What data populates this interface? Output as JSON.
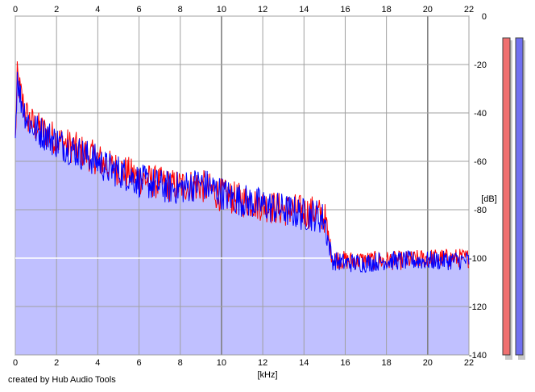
{
  "chart_data": {
    "type": "line",
    "xlabel": "[kHz]",
    "ylabel": "[dB]",
    "xlim": [
      0,
      22
    ],
    "ylim": [
      -140,
      0
    ],
    "x_ticks": [
      0,
      2,
      4,
      6,
      8,
      10,
      12,
      14,
      16,
      18,
      20,
      22
    ],
    "y_ticks": [
      0,
      -20,
      -40,
      -60,
      -80,
      -100,
      -120,
      -140
    ],
    "y_tick_labels": [
      "0",
      "-20",
      "-40",
      "-60",
      "-80",
      "-100",
      "-120",
      "-140"
    ],
    "grid": true,
    "fill_below": true,
    "series": [
      {
        "color": "#ff0000",
        "x": [
          0.0,
          0.1,
          0.2,
          0.4,
          0.6,
          0.8,
          1.0,
          1.5,
          2.0,
          2.5,
          3.0,
          3.5,
          4.0,
          4.5,
          5.0,
          5.5,
          6.0,
          6.5,
          7.0,
          7.5,
          8.0,
          8.5,
          9.0,
          9.5,
          10.0,
          10.5,
          11.0,
          11.5,
          12.0,
          12.5,
          13.0,
          13.5,
          14.0,
          14.5,
          15.0,
          15.2,
          15.4,
          16.0,
          17.0,
          18.0,
          19.0,
          20.0,
          21.0,
          22.0
        ],
        "y": [
          -52,
          -24,
          -30,
          -37,
          -42,
          -44,
          -46,
          -48,
          -51,
          -53,
          -55,
          -57,
          -59,
          -62,
          -63,
          -65,
          -67,
          -68,
          -69,
          -70,
          -70,
          -70,
          -70,
          -72,
          -74,
          -75,
          -76,
          -77,
          -78,
          -79,
          -80,
          -80,
          -81,
          -81,
          -83,
          -93,
          -100,
          -101,
          -101,
          -101,
          -101,
          -100,
          -100,
          -100
        ]
      },
      {
        "color": "#0000ff",
        "x": [
          0.0,
          0.1,
          0.2,
          0.4,
          0.6,
          0.8,
          1.0,
          1.5,
          2.0,
          2.5,
          3.0,
          3.5,
          4.0,
          4.5,
          5.0,
          5.5,
          6.0,
          6.5,
          7.0,
          7.5,
          8.0,
          8.5,
          9.0,
          9.5,
          10.0,
          10.5,
          11.0,
          11.5,
          12.0,
          12.5,
          13.0,
          13.5,
          14.0,
          14.5,
          15.0,
          15.2,
          15.4,
          16.0,
          17.0,
          18.0,
          19.0,
          20.0,
          21.0,
          22.0
        ],
        "y": [
          -50,
          -22,
          -32,
          -38,
          -43,
          -45,
          -47,
          -49,
          -52,
          -54,
          -56,
          -58,
          -60,
          -63,
          -64,
          -66,
          -68,
          -69,
          -70,
          -71,
          -71,
          -70,
          -69,
          -71,
          -73,
          -75,
          -76,
          -77,
          -78,
          -79,
          -80,
          -81,
          -82,
          -82,
          -84,
          -94,
          -101,
          -102,
          -102,
          -101,
          -101,
          -101,
          -101,
          -101
        ]
      }
    ]
  },
  "level_meters": [
    {
      "color": "#f07070",
      "level_db": -140
    },
    {
      "color": "#7070f0",
      "level_db": -140
    }
  ],
  "footer": {
    "credit": "created by Hub Audio Tools"
  },
  "colors": {
    "plot_background": "#ffffff",
    "fill": "#c0c0ff",
    "grid": "#a0a0a0",
    "grid_major": "#808080",
    "zero_line": "#ffffff"
  }
}
